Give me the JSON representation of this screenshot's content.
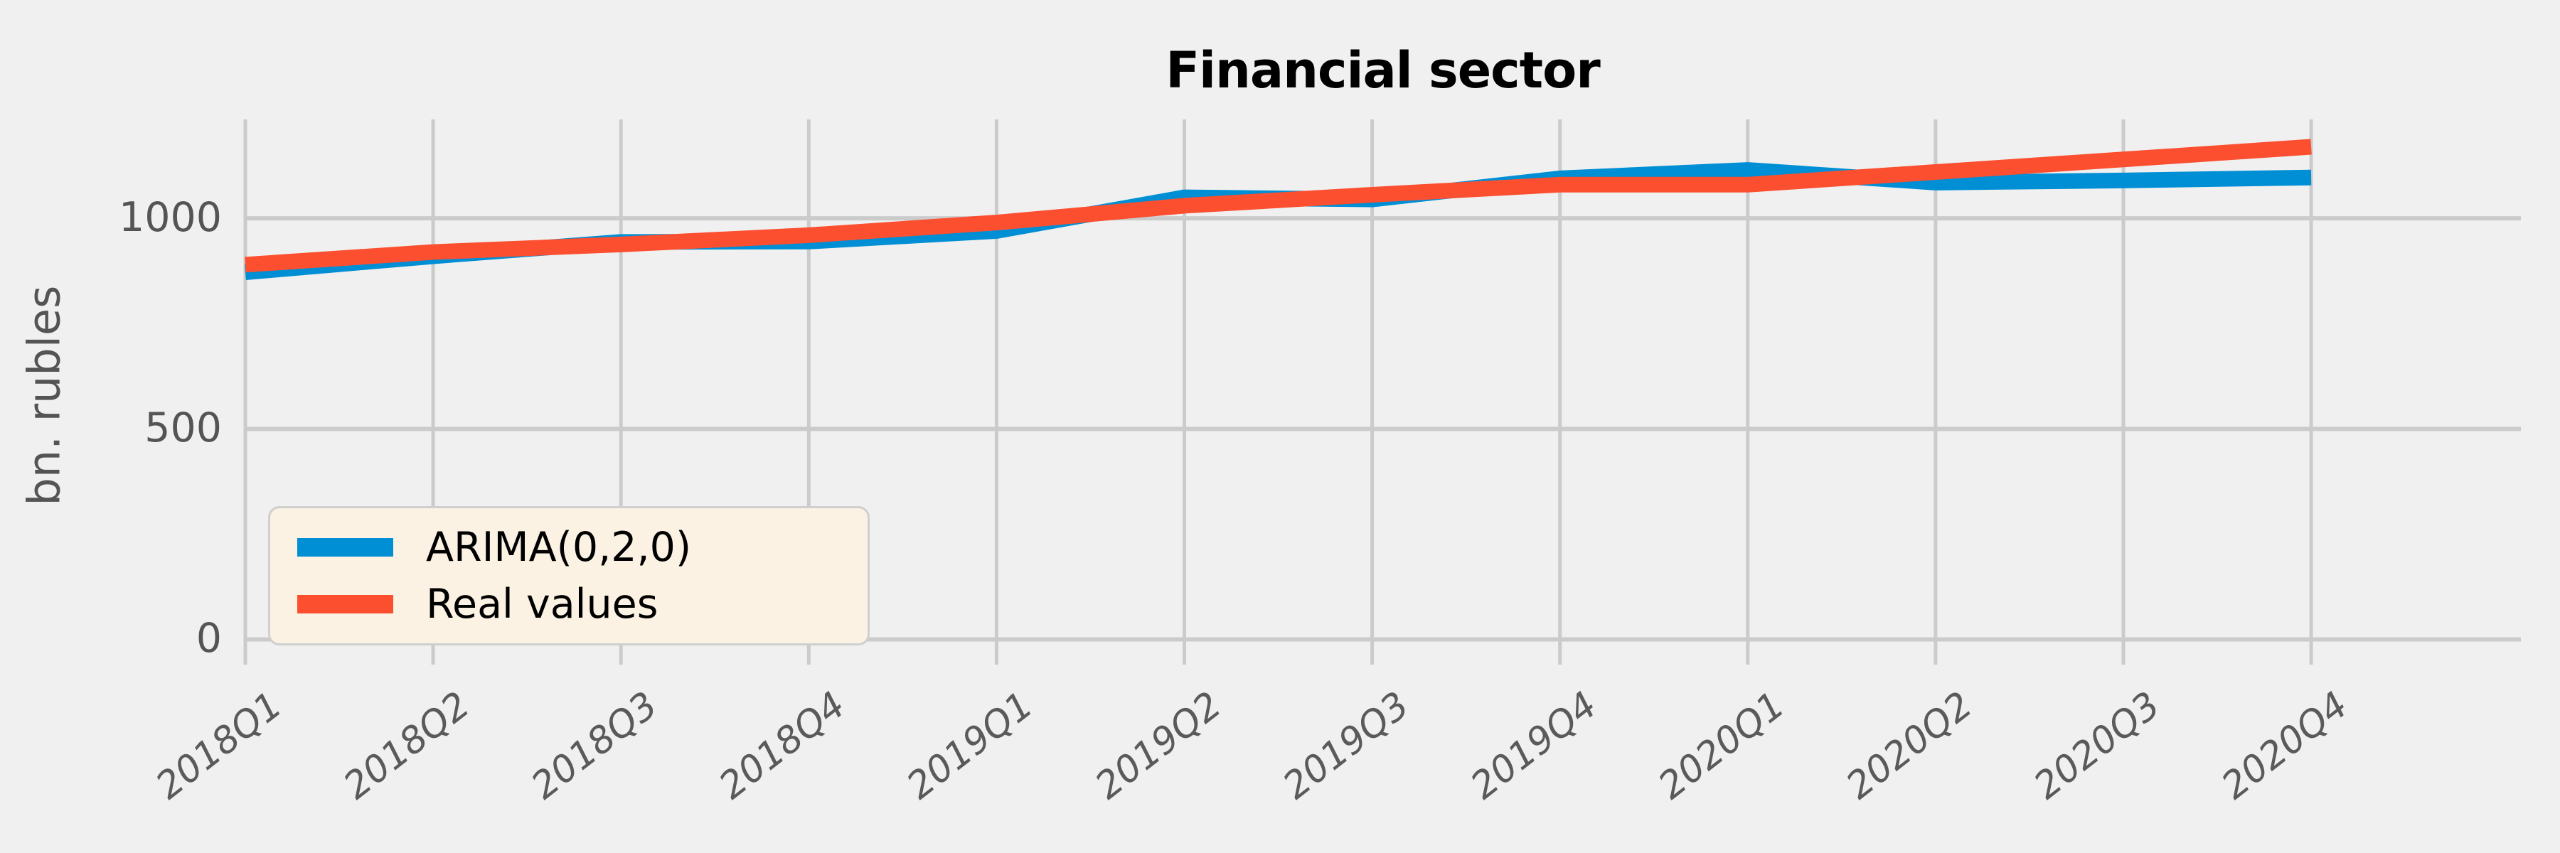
{
  "chart_data": {
    "type": "line",
    "title": "Financial sector",
    "ylabel": "bn. rubles",
    "xlabel": "",
    "categories": [
      "2018Q1",
      "2018Q2",
      "2018Q3",
      "2018Q4",
      "2019Q1",
      "2019Q2",
      "2019Q3",
      "2019Q4",
      "2020Q1",
      "2020Q2",
      "2020Q3",
      "2020Q4"
    ],
    "series": [
      {
        "name": "ARIMA(0,2,0)",
        "color": "#008fd5",
        "values": [
          872,
          910,
          944,
          945,
          970,
          1050,
          1045,
          1095,
          1115,
          1085,
          1090,
          1097
        ]
      },
      {
        "name": "Real values",
        "color": "#fc4f30",
        "values": [
          890,
          920,
          938,
          960,
          990,
          1030,
          1056,
          1080,
          1080,
          1110,
          1140,
          1170
        ]
      }
    ],
    "yticks": [
      0,
      500,
      1000
    ],
    "ylim": [
      -60,
      1235
    ],
    "grid": true,
    "legend_position": "lower left",
    "colors": {
      "background": "#f0f0f0",
      "gridline": "#cbcbcb",
      "tick_label": "#545454",
      "title": "#000000",
      "legend_background": "#fbf2e3",
      "legend_border": "#cfcfcf"
    }
  }
}
